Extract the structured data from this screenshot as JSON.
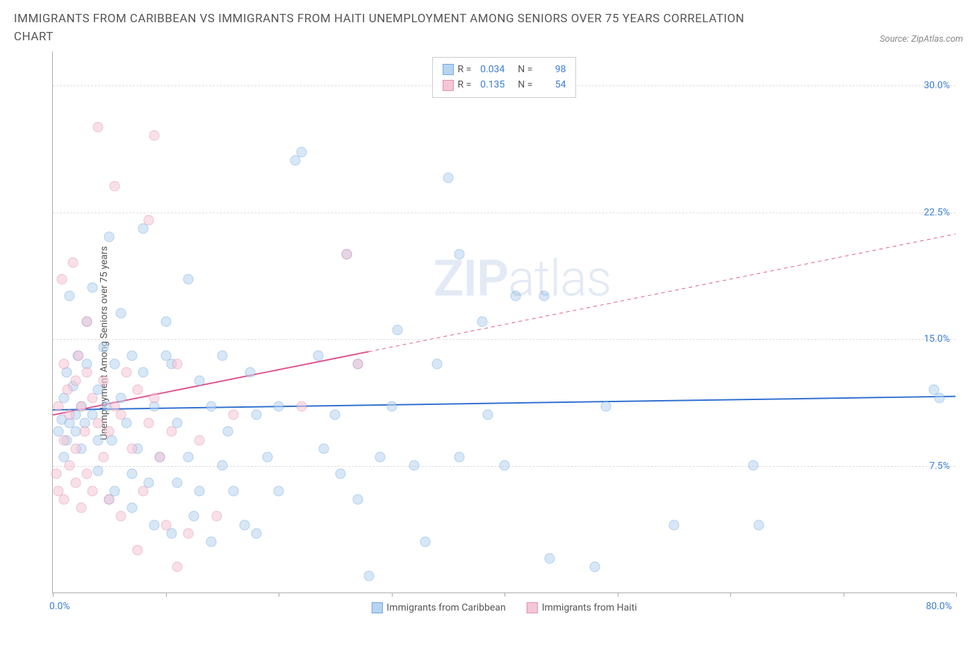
{
  "title": "IMMIGRANTS FROM CARIBBEAN VS IMMIGRANTS FROM HAITI UNEMPLOYMENT AMONG SENIORS OVER 75 YEARS CORRELATION CHART",
  "source": "Source: ZipAtlas.com",
  "y_axis_label": "Unemployment Among Seniors over 75 years",
  "watermark_bold": "ZIP",
  "watermark_light": "atlas",
  "chart": {
    "type": "scatter",
    "xlim": [
      0,
      80
    ],
    "ylim": [
      0,
      32
    ],
    "x_min_label": "0.0%",
    "x_max_label": "80.0%",
    "x_ticks": [
      0,
      10,
      20,
      30,
      40,
      50,
      60,
      70,
      80
    ],
    "y_ticks": [
      {
        "v": 7.5,
        "label": "7.5%"
      },
      {
        "v": 15.0,
        "label": "15.0%"
      },
      {
        "v": 22.5,
        "label": "22.5%"
      },
      {
        "v": 30.0,
        "label": "30.0%"
      }
    ],
    "grid_color": "#dddddd",
    "axis_color": "#aaaaaa",
    "tick_label_color": "#3b7dd8",
    "background": "#ffffff",
    "marker_radius": 7.5,
    "marker_opacity": 0.55,
    "series": [
      {
        "name": "Immigrants from Caribbean",
        "color_fill": "#b8d4f0",
        "color_stroke": "#6fa8e0",
        "R": "0.034",
        "N": "98",
        "trend": {
          "y_at_xmin": 10.8,
          "y_at_xmax": 11.6,
          "solid_until_x": 80,
          "color": "#2f6fd0",
          "width": 2
        },
        "points": [
          [
            0.5,
            9.5
          ],
          [
            0.8,
            10.2
          ],
          [
            1.0,
            11.5
          ],
          [
            1.0,
            8.0
          ],
          [
            1.2,
            13.0
          ],
          [
            1.2,
            9.0
          ],
          [
            1.5,
            17.5
          ],
          [
            1.5,
            10.0
          ],
          [
            1.8,
            12.2
          ],
          [
            2.0,
            10.5
          ],
          [
            2.0,
            9.5
          ],
          [
            2.2,
            14.0
          ],
          [
            2.5,
            8.5
          ],
          [
            2.5,
            11.0
          ],
          [
            2.8,
            10.0
          ],
          [
            3.0,
            13.5
          ],
          [
            3.0,
            16.0
          ],
          [
            3.5,
            18.0
          ],
          [
            3.5,
            10.5
          ],
          [
            4.0,
            12.0
          ],
          [
            4.0,
            9.0
          ],
          [
            4.0,
            7.2
          ],
          [
            4.5,
            14.5
          ],
          [
            4.8,
            11.0
          ],
          [
            5.0,
            21.0
          ],
          [
            5.0,
            5.5
          ],
          [
            5.2,
            9.0
          ],
          [
            5.5,
            13.5
          ],
          [
            5.5,
            6.0
          ],
          [
            6.0,
            11.5
          ],
          [
            6.0,
            16.5
          ],
          [
            6.5,
            10.0
          ],
          [
            7.0,
            14.0
          ],
          [
            7.0,
            5.0
          ],
          [
            7.0,
            7.0
          ],
          [
            7.5,
            8.5
          ],
          [
            8.0,
            21.5
          ],
          [
            8.0,
            13.0
          ],
          [
            8.5,
            6.5
          ],
          [
            9.0,
            11.0
          ],
          [
            9.0,
            4.0
          ],
          [
            9.5,
            8.0
          ],
          [
            10.0,
            16.0
          ],
          [
            10.0,
            14.0
          ],
          [
            10.5,
            13.5
          ],
          [
            10.5,
            3.5
          ],
          [
            11.0,
            6.5
          ],
          [
            11.0,
            10.0
          ],
          [
            12.0,
            18.5
          ],
          [
            12.0,
            8.0
          ],
          [
            12.5,
            4.5
          ],
          [
            13.0,
            12.5
          ],
          [
            13.0,
            6.0
          ],
          [
            14.0,
            3.0
          ],
          [
            14.0,
            11.0
          ],
          [
            15.0,
            14.0
          ],
          [
            15.0,
            7.5
          ],
          [
            15.5,
            9.5
          ],
          [
            16.0,
            6.0
          ],
          [
            17.0,
            4.0
          ],
          [
            17.5,
            13.0
          ],
          [
            18.0,
            10.5
          ],
          [
            18.0,
            3.5
          ],
          [
            19.0,
            8.0
          ],
          [
            20.0,
            6.0
          ],
          [
            20.0,
            11.0
          ],
          [
            21.5,
            25.5
          ],
          [
            22.0,
            26.0
          ],
          [
            23.5,
            14.0
          ],
          [
            24.0,
            8.5
          ],
          [
            25.0,
            10.5
          ],
          [
            25.5,
            7.0
          ],
          [
            26.0,
            20.0
          ],
          [
            27.0,
            5.5
          ],
          [
            27.0,
            13.5
          ],
          [
            28.0,
            1.0
          ],
          [
            29.0,
            8.0
          ],
          [
            30.0,
            11.0
          ],
          [
            30.5,
            15.5
          ],
          [
            32.0,
            7.5
          ],
          [
            33.0,
            3.0
          ],
          [
            34.0,
            13.5
          ],
          [
            35.0,
            24.5
          ],
          [
            36.0,
            20.0
          ],
          [
            36.0,
            8.0
          ],
          [
            38.0,
            16.0
          ],
          [
            38.5,
            10.5
          ],
          [
            40.0,
            7.5
          ],
          [
            41.0,
            17.5
          ],
          [
            43.5,
            17.5
          ],
          [
            44.0,
            2.0
          ],
          [
            48.0,
            1.5
          ],
          [
            49.0,
            11.0
          ],
          [
            55.0,
            4.0
          ],
          [
            62.0,
            7.5
          ],
          [
            62.5,
            4.0
          ],
          [
            78.0,
            12.0
          ],
          [
            78.5,
            11.5
          ]
        ]
      },
      {
        "name": "Immigrants from Haiti",
        "color_fill": "#f5c6d6",
        "color_stroke": "#e08fb0",
        "R": "0.135",
        "N": "54",
        "trend": {
          "y_at_xmin": 10.5,
          "y_at_xmax": 21.2,
          "solid_until_x": 28,
          "color": "#e05590",
          "width": 2
        },
        "points": [
          [
            0.3,
            7.0
          ],
          [
            0.5,
            6.0
          ],
          [
            0.5,
            11.0
          ],
          [
            0.8,
            18.5
          ],
          [
            1.0,
            9.0
          ],
          [
            1.0,
            13.5
          ],
          [
            1.0,
            5.5
          ],
          [
            1.3,
            12.0
          ],
          [
            1.5,
            7.5
          ],
          [
            1.5,
            10.5
          ],
          [
            1.8,
            19.5
          ],
          [
            2.0,
            8.5
          ],
          [
            2.0,
            12.5
          ],
          [
            2.0,
            6.5
          ],
          [
            2.3,
            14.0
          ],
          [
            2.5,
            11.0
          ],
          [
            2.5,
            5.0
          ],
          [
            2.8,
            9.5
          ],
          [
            3.0,
            16.0
          ],
          [
            3.0,
            13.0
          ],
          [
            3.0,
            7.0
          ],
          [
            3.5,
            11.5
          ],
          [
            3.5,
            6.0
          ],
          [
            4.0,
            10.0
          ],
          [
            4.0,
            27.5
          ],
          [
            4.5,
            12.5
          ],
          [
            4.5,
            8.0
          ],
          [
            5.0,
            9.5
          ],
          [
            5.0,
            5.5
          ],
          [
            5.5,
            24.0
          ],
          [
            5.5,
            11.0
          ],
          [
            6.0,
            4.5
          ],
          [
            6.0,
            10.5
          ],
          [
            6.5,
            13.0
          ],
          [
            7.0,
            8.5
          ],
          [
            7.5,
            12.0
          ],
          [
            7.5,
            2.5
          ],
          [
            8.0,
            6.0
          ],
          [
            8.5,
            22.0
          ],
          [
            8.5,
            10.0
          ],
          [
            9.0,
            27.0
          ],
          [
            9.0,
            11.5
          ],
          [
            9.5,
            8.0
          ],
          [
            10.0,
            4.0
          ],
          [
            10.5,
            9.5
          ],
          [
            11.0,
            13.5
          ],
          [
            11.0,
            1.5
          ],
          [
            12.0,
            3.5
          ],
          [
            13.0,
            9.0
          ],
          [
            14.5,
            4.5
          ],
          [
            16.0,
            10.5
          ],
          [
            22.0,
            11.0
          ],
          [
            26.0,
            20.0
          ],
          [
            27.0,
            13.5
          ]
        ]
      }
    ]
  },
  "legend_labels": {
    "R": "R =",
    "N": "N ="
  }
}
